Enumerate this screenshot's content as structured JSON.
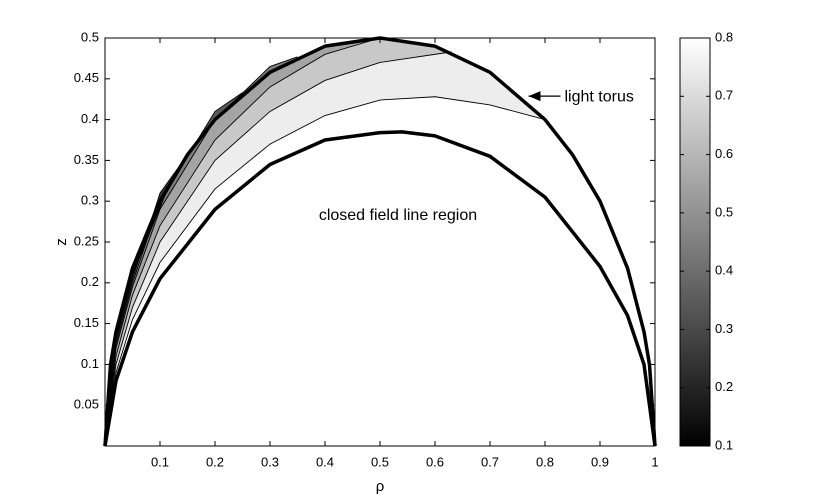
{
  "chart_data": {
    "type": "contour",
    "xlabel": "ρ",
    "ylabel": "z",
    "xlim": [
      0,
      1
    ],
    "ylim": [
      0,
      0.5
    ],
    "xticks": [
      0.1,
      0.2,
      0.3,
      0.4,
      0.5,
      0.6,
      0.7,
      0.8,
      0.9,
      1
    ],
    "yticks": [
      0.05,
      0.1,
      0.15,
      0.2,
      0.25,
      0.3,
      0.35,
      0.4,
      0.45,
      0.5
    ],
    "colormap": "gray",
    "colorbar": {
      "lim": [
        0.1,
        0.8
      ],
      "ticks": [
        0.1,
        0.2,
        0.3,
        0.4,
        0.5,
        0.6,
        0.7,
        0.8
      ]
    },
    "outer_boundary": {
      "x": [
        0,
        0.01,
        0.02,
        0.05,
        0.1,
        0.15,
        0.2,
        0.3,
        0.4,
        0.5,
        0.6,
        0.7,
        0.8,
        0.85,
        0.9,
        0.95,
        0.98,
        0.99,
        1
      ],
      "y": [
        0,
        0.0995,
        0.14,
        0.218,
        0.3,
        0.357,
        0.4,
        0.458,
        0.49,
        0.5,
        0.49,
        0.458,
        0.4,
        0.357,
        0.3,
        0.218,
        0.14,
        0.0995,
        0
      ]
    },
    "inner_boundary": {
      "x": [
        0,
        0.02,
        0.05,
        0.1,
        0.2,
        0.3,
        0.4,
        0.5,
        0.54,
        0.6,
        0.7,
        0.8,
        0.9,
        0.95,
        0.98,
        1
      ],
      "y": [
        0,
        0.08,
        0.14,
        0.205,
        0.29,
        0.345,
        0.375,
        0.384,
        0.385,
        0.38,
        0.355,
        0.305,
        0.22,
        0.16,
        0.1,
        0
      ]
    },
    "contours": [
      {
        "level": 0.75,
        "x": [
          0,
          0.02,
          0.05,
          0.1,
          0.2,
          0.3,
          0.4,
          0.5,
          0.6,
          0.7,
          0.8
        ],
        "y": [
          0,
          0.09,
          0.155,
          0.225,
          0.315,
          0.37,
          0.405,
          0.424,
          0.428,
          0.418,
          0.4
        ]
      },
      {
        "level": 0.65,
        "x": [
          0,
          0.02,
          0.05,
          0.1,
          0.2,
          0.3,
          0.4,
          0.5,
          0.63
        ],
        "y": [
          0,
          0.1,
          0.17,
          0.25,
          0.35,
          0.41,
          0.448,
          0.47,
          0.483
        ]
      },
      {
        "level": 0.55,
        "x": [
          0,
          0.02,
          0.05,
          0.1,
          0.2,
          0.3,
          0.4,
          0.5
        ],
        "y": [
          0,
          0.11,
          0.185,
          0.27,
          0.375,
          0.44,
          0.48,
          0.5
        ]
      },
      {
        "level": 0.45,
        "x": [
          0,
          0.02,
          0.05,
          0.1,
          0.2,
          0.3,
          0.35
        ],
        "y": [
          0,
          0.12,
          0.195,
          0.29,
          0.4,
          0.465,
          0.477
        ]
      },
      {
        "level": 0.35,
        "x": [
          0,
          0.02,
          0.05,
          0.1,
          0.2,
          0.25
        ],
        "y": [
          0,
          0.125,
          0.2,
          0.3,
          0.41,
          0.433
        ]
      },
      {
        "level": 0.25,
        "x": [
          0,
          0.02,
          0.05,
          0.1,
          0.18
        ],
        "y": [
          0,
          0.13,
          0.205,
          0.31,
          0.385
        ]
      },
      {
        "level": 0.15,
        "x": [
          0,
          0.02,
          0.05,
          0.12
        ],
        "y": [
          0,
          0.135,
          0.21,
          0.325
        ]
      }
    ],
    "annotations": [
      {
        "text": "light torus",
        "x": 0.77,
        "y": 0.43
      },
      {
        "text": "closed field line region"
      }
    ]
  }
}
